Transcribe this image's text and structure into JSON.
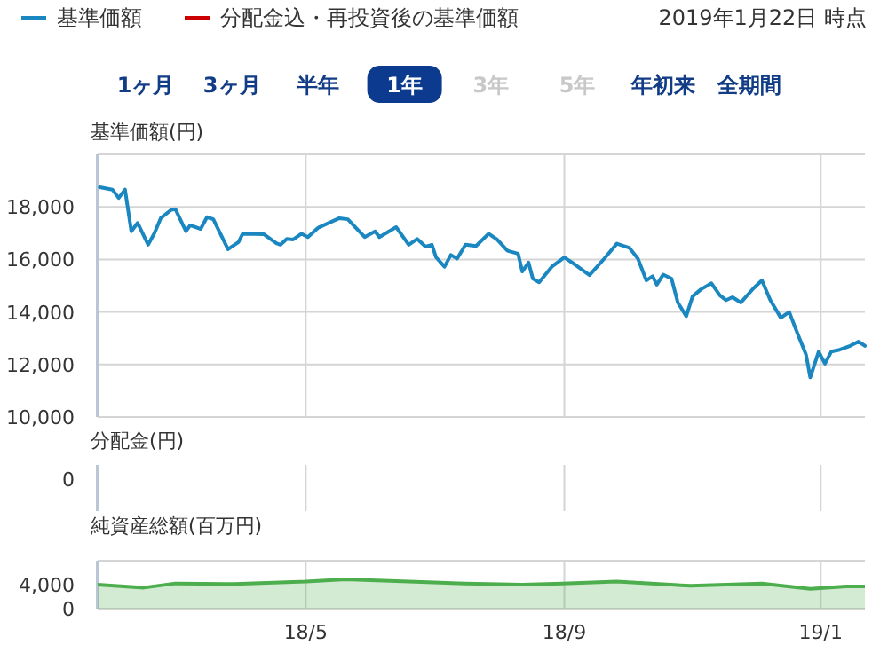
{
  "chart_data": [
    {
      "type": "line",
      "subtitle": "2019年1月22日 時点",
      "annotations": [
        "1ヶ月",
        "3ヶ月",
        "半年",
        "1年",
        "3年",
        "5年",
        "年初来",
        "全期間"
      ],
      "ylabel": "基準価額(円)",
      "xlim": [
        "2018-01-22",
        "2019-01-22"
      ],
      "xticks": [
        {
          "value": "2018-05-01",
          "label": null
        },
        {
          "value": "2018-09-01",
          "label": null
        },
        {
          "value": "2019-01-01",
          "label": null
        }
      ],
      "ylim": [
        10000,
        20000
      ],
      "yticks": [
        {
          "value": 10000,
          "label": "10,000"
        },
        {
          "value": 12000,
          "label": "12,000"
        },
        {
          "value": 14000,
          "label": "14,000"
        },
        {
          "value": 16000,
          "label": "16,000"
        },
        {
          "value": 18000,
          "label": "18,000"
        }
      ],
      "grid": true,
      "legend": "top left",
      "tick_labels": "y",
      "series": [
        {
          "name": "基準価額",
          "color": "#1a87c0",
          "x": [
            "2018-01-23",
            "2018-01-29",
            "2018-02-01",
            "2018-02-04",
            "2018-02-07",
            "2018-02-10",
            "2018-02-15",
            "2018-02-18",
            "2018-02-21",
            "2018-02-26",
            "2018-02-28",
            "2018-03-05",
            "2018-03-07",
            "2018-03-12",
            "2018-03-15",
            "2018-03-18",
            "2018-03-25",
            "2018-03-30",
            "2018-04-01",
            "2018-04-11",
            "2018-04-17",
            "2018-04-19",
            "2018-04-22",
            "2018-04-25",
            "2018-04-29",
            "2018-05-02",
            "2018-05-07",
            "2018-05-17",
            "2018-05-21",
            "2018-05-29",
            "2018-06-03",
            "2018-06-05",
            "2018-06-13",
            "2018-06-19",
            "2018-06-23",
            "2018-06-27",
            "2018-06-30",
            "2018-07-02",
            "2018-07-06",
            "2018-07-09",
            "2018-07-12",
            "2018-07-16",
            "2018-07-21",
            "2018-07-27",
            "2018-07-31",
            "2018-08-05",
            "2018-08-10",
            "2018-08-12",
            "2018-08-15",
            "2018-08-17",
            "2018-08-20",
            "2018-08-26",
            "2018-09-01",
            "2018-09-06",
            "2018-09-13",
            "2018-09-20",
            "2018-09-26",
            "2018-10-02",
            "2018-10-06",
            "2018-10-10",
            "2018-10-13",
            "2018-10-15",
            "2018-10-18",
            "2018-10-22",
            "2018-10-25",
            "2018-10-29",
            "2018-11-01",
            "2018-11-05",
            "2018-11-10",
            "2018-11-14",
            "2018-11-17",
            "2018-11-20",
            "2018-11-24",
            "2018-11-30",
            "2018-12-04",
            "2018-12-08",
            "2018-12-13",
            "2018-12-17",
            "2018-12-21",
            "2018-12-25",
            "2018-12-27",
            "2018-12-31",
            "2019-01-03",
            "2019-01-06",
            "2019-01-10",
            "2019-01-15",
            "2019-01-19",
            "2019-01-22"
          ],
          "values": [
            18750,
            18660,
            18340,
            18660,
            17070,
            17390,
            16560,
            17000,
            17570,
            17890,
            17910,
            17070,
            17300,
            17160,
            17610,
            17530,
            16390,
            16660,
            16980,
            16960,
            16620,
            16560,
            16780,
            16760,
            16980,
            16850,
            17210,
            17570,
            17530,
            16850,
            17070,
            16850,
            17230,
            16560,
            16780,
            16490,
            16560,
            16080,
            15720,
            16170,
            16030,
            16560,
            16510,
            16980,
            16760,
            16330,
            16220,
            15540,
            15880,
            15270,
            15130,
            15720,
            16080,
            15810,
            15400,
            16030,
            16600,
            16440,
            16030,
            15200,
            15360,
            15040,
            15420,
            15270,
            14360,
            13840,
            14590,
            14860,
            15090,
            14630,
            14450,
            14560,
            14360,
            14900,
            15200,
            14450,
            13780,
            14000,
            13170,
            12370,
            11510,
            12490,
            12030,
            12490,
            12560,
            12710,
            12870,
            12710
          ]
        },
        {
          "name": "分配金込・再投資後の基準価額",
          "color": "#cc0000"
        }
      ]
    },
    {
      "type": "other",
      "ylabel": "分配金(円)",
      "annotations": [
        "0"
      ]
    },
    {
      "type": "area",
      "ylabel": "純資産総額(百万円)",
      "color": "#4cae4c",
      "xlim": [
        "2018-01-22",
        "2019-01-22"
      ],
      "xticks": [
        {
          "value": "2018-05-01",
          "label": "18/5"
        },
        {
          "value": "2018-09-01",
          "label": "18/9"
        },
        {
          "value": "2019-01-01",
          "label": "19/1"
        }
      ],
      "ylim": [
        0,
        8000
      ],
      "yticks": [
        0,
        {
          "value": 4000,
          "label": "4,000"
        }
      ],
      "grid": "x",
      "x": [
        "2018-01-22",
        "2018-02-13",
        "2018-02-28",
        "2018-03-28",
        "2018-05-01",
        "2018-05-20",
        "2018-06-19",
        "2018-07-16",
        "2018-08-12",
        "2018-08-31",
        "2018-09-26",
        "2018-10-31",
        "2018-12-04",
        "2018-12-27",
        "2019-01-13",
        "2019-01-22"
      ],
      "values": [
        4000,
        3500,
        4200,
        4100,
        4500,
        4900,
        4500,
        4200,
        4000,
        4200,
        4500,
        3800,
        4200,
        3300,
        3700,
        3700
      ]
    }
  ]
}
